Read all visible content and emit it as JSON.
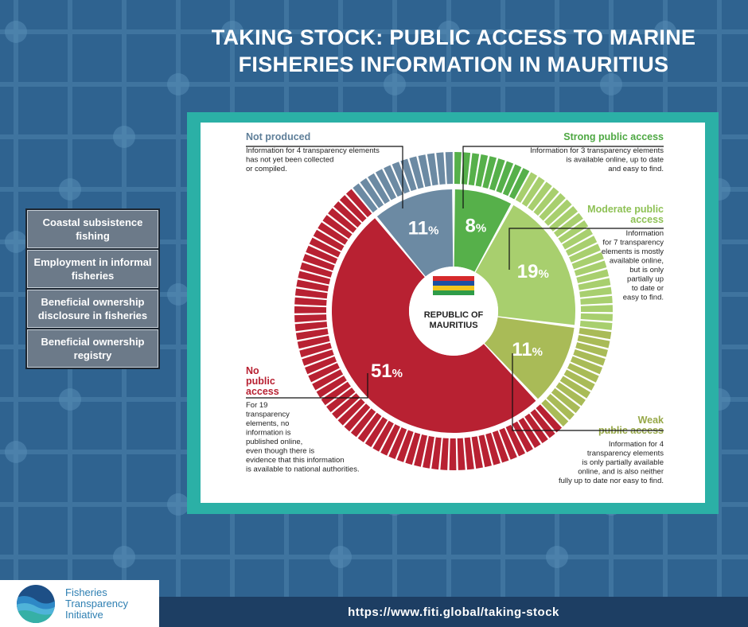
{
  "header": {
    "title_line1": "TAKING STOCK: PUBLIC ACCESS TO MARINE",
    "title_line2": "FISHERIES INFORMATION IN MAURITIUS"
  },
  "sidebar": {
    "items": [
      {
        "label": "Coastal subsistence fishing"
      },
      {
        "label": "Employment in informal fisheries"
      },
      {
        "label": "Beneficial ownership disclosure in fisheries"
      },
      {
        "label": "Beneficial ownership registry"
      }
    ]
  },
  "footer": {
    "url": "https://www.fiti.global/taking-stock",
    "logo_line1": "Fisheries",
    "logo_line2": "Transparency",
    "logo_line3": "Initiative"
  },
  "colors": {
    "strong": "#56b04a",
    "moderate": "#a8cf6e",
    "weak": "#a9bb57",
    "none": "#b82132",
    "not_produced": "#6c8aa3",
    "flag_red": "#d62a2c",
    "flag_blue": "#1d4fa1",
    "flag_yellow": "#f3c51b",
    "flag_green": "#2f9c48"
  },
  "chart_data": {
    "type": "pie",
    "center_label_line1": "REPUBLIC OF",
    "center_label_line2": "MAURITIUS",
    "segments": [
      {
        "key": "strong",
        "value": 8,
        "count": 3,
        "heading": "Strong public access",
        "desc": [
          "Information for 3 transparency elements",
          "is available online, up to date",
          "and easy to find."
        ]
      },
      {
        "key": "moderate",
        "value": 19,
        "count": 7,
        "heading": "Moderate public access",
        "desc": [
          "Information",
          "for 7 transparency",
          "elements is mostly",
          "available online,",
          "but is only",
          "partially up",
          "to date or",
          "easy to find."
        ]
      },
      {
        "key": "weak",
        "value": 11,
        "count": 4,
        "heading": "Weak public access",
        "desc": [
          "Information for 4",
          "transparency elements",
          "is only partially available",
          "online, and is also neither",
          "fully up to date nor easy to find."
        ]
      },
      {
        "key": "none",
        "value": 51,
        "count": 19,
        "heading": "No public access",
        "desc": [
          "For 19",
          "transparency",
          "elements, no",
          "information is",
          "published online,",
          "even though there is",
          "evidence that this information",
          "is available to national authorities."
        ]
      },
      {
        "key": "not_produced",
        "value": 11,
        "count": 4,
        "heading": "Not produced",
        "desc": [
          "Information for 4 transparency elements",
          "has not yet been collected",
          "or compiled."
        ]
      }
    ]
  }
}
